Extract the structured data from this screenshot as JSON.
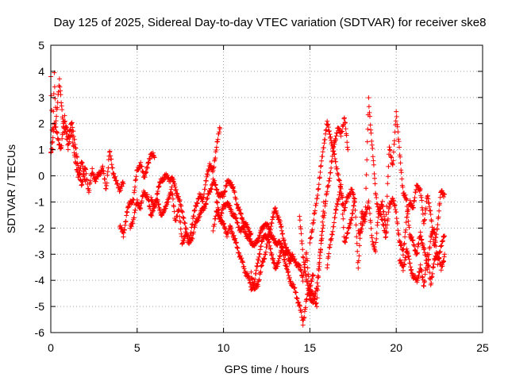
{
  "chart_data": {
    "type": "scatter",
    "title": "Day 125 of 2025, Sidereal Day-to-day VTEC variation (SDTVAR) for receiver ske8",
    "xlabel": "GPS time / hours",
    "ylabel": "SDTVAR / TECUs",
    "xlim": [
      0,
      25
    ],
    "ylim": [
      -6,
      5
    ],
    "xticks": [
      0,
      5,
      10,
      15,
      20,
      25
    ],
    "yticks": [
      -6,
      -5,
      -4,
      -3,
      -2,
      -1,
      0,
      1,
      2,
      3,
      4,
      5
    ],
    "grid": true,
    "marker": "+",
    "series": [
      {
        "name": "SDTVAR",
        "color": "#ff0000",
        "segments": [
          {
            "x": [
              0.0,
              0.1,
              0.2,
              0.3,
              0.4,
              0.5,
              0.6,
              0.7,
              0.8,
              0.9,
              1.0,
              1.2,
              1.4,
              1.6,
              1.8,
              2.0,
              2.2,
              2.4,
              2.6,
              2.8,
              3.0,
              3.2,
              3.4,
              3.6,
              3.8,
              4.0,
              4.2
            ],
            "y": [
              3.8,
              1.0,
              3.9,
              2.2,
              2.8,
              3.6,
              2.9,
              2.2,
              1.6,
              1.9,
              1.5,
              2.0,
              1.3,
              0.2,
              -0.3,
              0.3,
              -0.6,
              0.2,
              -0.2,
              0.1,
              0.3,
              -0.5,
              0.9,
              0.2,
              -0.3,
              -0.5,
              -0.3
            ]
          },
          {
            "x": [
              0.0,
              0.2,
              0.4,
              0.6,
              0.8,
              1.0,
              1.2,
              1.4,
              1.6,
              1.8,
              2.0
            ],
            "y": [
              0.8,
              2.0,
              1.5,
              1.0,
              2.3,
              1.0,
              1.8,
              0.6,
              0.0,
              0.5,
              -0.2
            ]
          },
          {
            "x": [
              4.0,
              4.2,
              4.4,
              4.6,
              4.8,
              5.0,
              5.2,
              5.4,
              5.6,
              5.8,
              6.0
            ],
            "y": [
              -1.9,
              -2.3,
              -1.4,
              -1.0,
              -0.9,
              0.3,
              0.4,
              0.0,
              0.3,
              0.9,
              0.7
            ]
          },
          {
            "x": [
              4.6,
              4.8,
              5.0,
              5.2,
              5.4,
              5.6,
              5.8,
              6.0,
              6.2,
              6.4,
              6.6,
              6.8,
              7.0,
              7.2,
              7.4,
              7.6,
              7.8,
              8.0,
              8.2,
              8.4,
              8.6,
              8.8,
              9.0,
              9.2,
              9.4,
              9.6,
              9.8
            ],
            "y": [
              -2.0,
              -1.6,
              -1.0,
              -1.2,
              -0.6,
              -0.8,
              -1.5,
              -1.1,
              -0.9,
              -1.6,
              -1.2,
              -1.0,
              -0.4,
              -1.8,
              -1.2,
              -2.6,
              -2.2,
              -2.5,
              -1.8,
              -1.1,
              -0.8,
              -0.9,
              -0.2,
              0.5,
              0.1,
              1.2,
              1.8
            ]
          },
          {
            "x": [
              5.8,
              6.0,
              6.2,
              6.4,
              6.6,
              6.8,
              7.0,
              7.2,
              7.4,
              7.6,
              7.8,
              8.0
            ],
            "y": [
              -0.8,
              -1.3,
              -0.5,
              -0.2,
              0.0,
              -0.1,
              -0.1,
              -0.4,
              -0.9,
              -1.3,
              -2.0,
              -2.6
            ]
          },
          {
            "x": [
              8.0,
              8.2,
              8.4,
              8.6,
              8.8,
              9.0,
              9.2,
              9.4,
              9.6,
              9.8,
              10.0,
              10.2,
              10.4,
              10.6,
              10.8,
              11.0,
              11.2,
              11.4,
              11.6
            ],
            "y": [
              -2.6,
              -2.3,
              -1.8,
              -1.5,
              -1.3,
              -1.0,
              -0.6,
              -0.2,
              -0.5,
              -0.8,
              -0.7,
              -0.3,
              -0.2,
              -0.6,
              -1.1,
              -1.5,
              -1.8,
              -2.0,
              -2.2
            ]
          },
          {
            "x": [
              9.4,
              9.6,
              9.8,
              10.0,
              10.2,
              10.4,
              10.6,
              10.8,
              11.0,
              11.2,
              11.4,
              11.6,
              11.8,
              12.0,
              12.2,
              12.4,
              12.6,
              12.8,
              13.0,
              13.2,
              13.4,
              13.6,
              13.8,
              14.0,
              14.2,
              14.4,
              14.6,
              14.8,
              15.0,
              15.2,
              15.4,
              15.6,
              15.8
            ],
            "y": [
              -2.0,
              -1.4,
              -1.6,
              -1.2,
              -1.0,
              -1.3,
              -1.5,
              -1.8,
              -2.1,
              -2.0,
              -2.4,
              -2.5,
              -2.7,
              -2.4,
              -2.1,
              -1.8,
              -2.0,
              -2.3,
              -2.6,
              -2.5,
              -2.8,
              -3.0,
              -2.9,
              -3.2,
              -3.3,
              -3.5,
              -3.9,
              -3.0,
              -4.4,
              -4.6,
              -4.9,
              -3.0,
              -1.0
            ]
          },
          {
            "x": [
              9.6,
              9.8,
              10.0,
              10.2,
              10.4,
              10.6,
              10.8,
              11.0,
              11.2,
              11.4,
              11.6,
              11.8,
              12.0,
              12.2,
              12.4,
              12.6,
              12.8,
              13.0,
              13.2,
              13.4,
              13.6,
              13.8,
              14.0,
              14.2,
              14.4,
              14.6,
              14.8,
              15.0,
              15.2
            ],
            "y": [
              -1.0,
              -1.6,
              -1.9,
              -2.2,
              -2.0,
              -2.3,
              -2.8,
              -3.1,
              -3.6,
              -3.8,
              -4.3,
              -4.1,
              -3.2,
              -2.6,
              -2.2,
              -2.5,
              -3.0,
              -3.6,
              -3.2,
              -2.8,
              -3.4,
              -3.9,
              -4.2,
              -4.5,
              -5.0,
              -5.6,
              -4.8,
              -4.2,
              -3.8
            ]
          },
          {
            "x": [
              11.6,
              11.8,
              12.0,
              12.2,
              12.4,
              12.6,
              12.8,
              13.0,
              13.2,
              13.4,
              13.6,
              13.8,
              14.0
            ],
            "y": [
              -3.7,
              -4.4,
              -4.1,
              -3.5,
              -3.0,
              -2.4,
              -1.7,
              -1.3,
              -1.6,
              -2.2,
              -2.7,
              -3.3,
              -3.0
            ]
          },
          {
            "x": [
              14.4,
              14.6,
              14.8,
              15.0,
              15.2,
              15.4,
              15.6,
              15.8,
              16.0,
              16.2,
              16.4,
              16.6,
              16.8,
              17.0,
              17.2
            ],
            "y": [
              -1.6,
              -3.0,
              -4.0,
              -4.6,
              -4.9,
              -4.2,
              -3.0,
              -1.6,
              -0.6,
              0.2,
              1.2,
              1.8,
              1.6,
              2.2,
              1.0
            ]
          },
          {
            "x": [
              15.0,
              15.2,
              15.4,
              15.6,
              15.8,
              16.0,
              16.2,
              16.4,
              16.6,
              16.8,
              17.0,
              17.2,
              17.4,
              17.6
            ],
            "y": [
              -2.5,
              -1.8,
              -0.9,
              0.1,
              1.2,
              2.0,
              1.5,
              0.8,
              0.2,
              -0.6,
              -1.3,
              -0.8,
              -0.5,
              -1.0
            ]
          },
          {
            "x": [
              16.0,
              16.2,
              16.4,
              16.6,
              16.8,
              17.0,
              17.2,
              17.4,
              17.6,
              17.8,
              18.0,
              18.2,
              18.4,
              18.6,
              18.8,
              19.0,
              19.2,
              19.4,
              19.6,
              19.8,
              20.0,
              20.2,
              20.4,
              20.6,
              20.8,
              21.0,
              21.2,
              21.4,
              21.6,
              21.8,
              22.0,
              22.2,
              22.4,
              22.6,
              22.8
            ],
            "y": [
              -3.5,
              -2.5,
              -1.8,
              -1.0,
              -0.4,
              -2.5,
              -2.2,
              -1.6,
              -1.0,
              -3.5,
              -1.4,
              -1.7,
              2.9,
              1.2,
              -0.6,
              -1.5,
              -1.0,
              -2.0,
              1.2,
              0.3,
              2.5,
              0.8,
              -0.6,
              -1.0,
              -2.3,
              -2.6,
              -3.0,
              -2.2,
              -2.8,
              -3.5,
              -2.4,
              -2.0,
              -3.4,
              -2.6,
              -2.3
            ]
          },
          {
            "x": [
              17.8,
              18.0,
              18.2,
              18.4,
              18.6,
              18.8,
              19.0,
              19.2,
              19.4,
              19.6,
              19.8,
              20.0,
              20.2,
              20.4,
              20.6,
              20.8,
              21.0,
              21.2,
              21.4,
              21.6,
              21.8,
              22.0,
              22.2,
              22.4,
              22.6,
              22.8
            ],
            "y": [
              -2.2,
              -2.0,
              -1.5,
              -1.0,
              -2.4,
              -2.9,
              -1.1,
              -1.8,
              -2.3,
              -1.2,
              -0.8,
              -1.5,
              -2.5,
              -3.0,
              -1.6,
              -1.0,
              -1.2,
              -0.3,
              -0.6,
              -1.8,
              -0.8,
              -1.4,
              -2.8,
              -1.8,
              -0.6,
              -0.7
            ]
          },
          {
            "x": [
              20.2,
              20.4,
              20.6,
              20.8,
              21.0,
              21.2,
              21.4,
              21.6,
              21.8,
              22.0,
              22.2,
              22.4,
              22.6,
              22.8
            ],
            "y": [
              -3.2,
              -3.6,
              -2.8,
              -3.4,
              -3.9,
              -4.0,
              -3.5,
              -4.2,
              -3.0,
              -4.1,
              -3.3,
              -2.9,
              -3.6,
              -3.0
            ]
          }
        ]
      }
    ]
  }
}
